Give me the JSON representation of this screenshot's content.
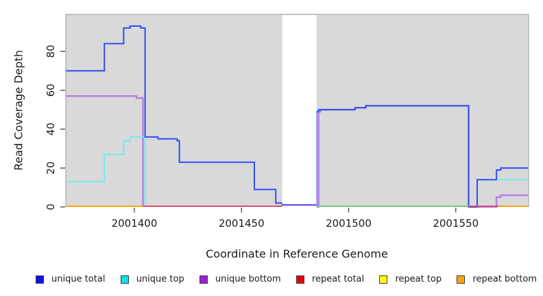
{
  "figure": {
    "xlabel": "Coordinate in Reference Genome",
    "ylabel": "Read Coverage Depth"
  },
  "legend": {
    "items": [
      {
        "label": "unique total",
        "color": "#1010EE"
      },
      {
        "label": "unique top",
        "color": "#00E6EE"
      },
      {
        "label": "unique bottom",
        "color": "#9C1FD6"
      },
      {
        "label": "repeat total",
        "color": "#EC0000"
      },
      {
        "label": "repeat top",
        "color": "#FFFF00"
      },
      {
        "label": "repeat bottom",
        "color": "#FFA500"
      }
    ]
  },
  "chart_data": {
    "type": "line",
    "title": "",
    "xlabel": "Coordinate in Reference Genome",
    "ylabel": "Read Coverage Depth",
    "xlim": [
      2001368,
      2001584
    ],
    "ylim": [
      0,
      99
    ],
    "x_ticks": [
      2001400,
      2001450,
      2001500,
      2001550
    ],
    "y_ticks": [
      0,
      20,
      40,
      60,
      80
    ],
    "grid": false,
    "legend_position": "bottom",
    "panel_bg": "#D9D9D9",
    "panel_border": "#A9A9A9",
    "tick_color": "#404040",
    "text_color": "#1a1a1a",
    "gap": {
      "x1": 2001469,
      "x2": 2001485,
      "fill": "#FFFFFF",
      "note": "white no-data region"
    },
    "gap_line": {
      "color": "#5A3DE8",
      "width": 2,
      "points": [
        [
          2001469,
          1
        ],
        [
          2001485,
          1
        ]
      ]
    },
    "series": [
      {
        "name": "unique bottom",
        "line_color": "#B77EE4",
        "width": 2.4,
        "draw": true,
        "segments": [
          [
            [
              2001368,
              57
            ],
            [
              2001401,
              56
            ],
            [
              2001404,
              0
            ]
          ],
          [
            [
              2001485,
              0
            ],
            [
              2001486,
              49
            ],
            [
              2001487,
              50
            ],
            [
              2001503,
              51
            ],
            [
              2001508,
              52
            ],
            [
              2001556,
              0
            ],
            [
              2001569,
              5
            ],
            [
              2001571,
              6
            ],
            [
              2001584,
              6
            ]
          ]
        ]
      },
      {
        "name": "unique top",
        "line_color": "#77E9EF",
        "width": 2,
        "draw": true,
        "segments": [
          [
            [
              2001368,
              13
            ],
            [
              2001386,
              27
            ],
            [
              2001395,
              34
            ],
            [
              2001398,
              36
            ],
            [
              2001405,
              0
            ]
          ],
          [
            [
              2001560,
              14
            ],
            [
              2001584,
              14
            ]
          ]
        ]
      },
      {
        "name": "unique total",
        "line_color": "#2F4DF2",
        "width": 2,
        "draw": true,
        "segments": [
          [
            [
              2001368,
              70
            ],
            [
              2001386,
              84
            ],
            [
              2001395,
              92
            ],
            [
              2001398,
              93
            ],
            [
              2001403,
              92
            ],
            [
              2001405,
              36
            ],
            [
              2001411,
              35
            ],
            [
              2001420,
              34
            ],
            [
              2001421,
              23
            ],
            [
              2001456,
              9
            ],
            [
              2001466,
              2
            ],
            [
              2001469,
              1
            ],
            [
              2001485,
              49
            ],
            [
              2001486,
              50
            ],
            [
              2001503,
              51
            ],
            [
              2001508,
              52
            ],
            [
              2001556,
              0
            ],
            [
              2001560,
              14
            ],
            [
              2001569,
              19
            ],
            [
              2001571,
              20
            ],
            [
              2001584,
              20
            ]
          ]
        ]
      },
      {
        "name": "repeat total",
        "line_color": "#EC0000",
        "width": 2,
        "draw": false,
        "segments": [
          [
            [
              2001368,
              0
            ],
            [
              2001584,
              0
            ]
          ]
        ]
      },
      {
        "name": "repeat top",
        "line_color": "#FFFF00",
        "width": 2,
        "draw": false,
        "segments": [
          [
            [
              2001368,
              0
            ],
            [
              2001584,
              0
            ]
          ]
        ]
      },
      {
        "name": "repeat bottom",
        "line_color": "#FFA500",
        "width": 2,
        "draw": false,
        "segments": [
          [
            [
              2001368,
              0
            ],
            [
              2001584,
              0
            ]
          ]
        ]
      }
    ],
    "baseline_segments": [
      {
        "x1": 2001368,
        "x2": 2001404,
        "color": "#FFA500",
        "note": "repeat bottom on top at depth 0"
      },
      {
        "x1": 2001404,
        "x2": 2001469,
        "color": "#D94A73",
        "note": "red/purple blend at depth 0"
      },
      {
        "x1": 2001485,
        "x2": 2001556,
        "color": "#74C878",
        "note": "yellow/cyan blend at depth 0"
      },
      {
        "x1": 2001556,
        "x2": 2001570,
        "color": "#D94A73",
        "note": "red blend at depth 0"
      },
      {
        "x1": 2001570,
        "x2": 2001584,
        "color": "#FFA500",
        "note": "repeat bottom on top at depth 0"
      }
    ]
  }
}
